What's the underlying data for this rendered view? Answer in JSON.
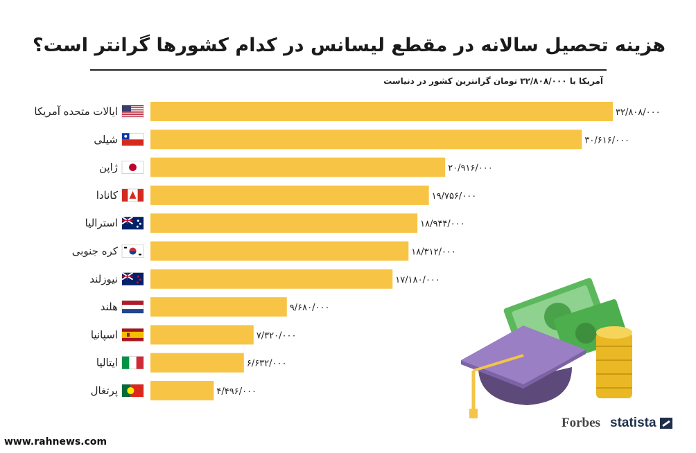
{
  "header": {
    "title": "هزینه تحصیل سالانه در مقطع لیسانس در کدام کشورها گرانتر است؟",
    "subtitle": "آمریکا با ۳۲/۸۰۸/۰۰۰ تومان گرانترین کشور در دنیاست"
  },
  "chart_data": {
    "type": "bar",
    "orientation": "horizontal",
    "categories": [
      "ایالات متحده آمریکا",
      "شیلی",
      "ژاپن",
      "کانادا",
      "استرالیا",
      "کره جنوبی",
      "نیوزلند",
      "هلند",
      "اسپانیا",
      "ایتالیا",
      "پرتغال"
    ],
    "values": [
      32808000,
      30616000,
      20916000,
      19756000,
      18944000,
      18312000,
      17180000,
      9680000,
      7320000,
      6632000,
      4496000
    ],
    "value_labels": [
      "۳۲/۸۰۸/۰۰۰",
      "۳۰/۶۱۶/۰۰۰",
      "۲۰/۹۱۶/۰۰۰",
      "۱۹/۷۵۶/۰۰۰",
      "۱۸/۹۴۴/۰۰۰",
      "۱۸/۳۱۲/۰۰۰",
      "۱۷/۱۸۰/۰۰۰",
      "۹/۶۸۰/۰۰۰",
      "۷/۳۲۰/۰۰۰",
      "۶/۶۳۲/۰۰۰",
      "۴/۴۹۶/۰۰۰"
    ],
    "flags": [
      "us-flag-icon",
      "chile-flag-icon",
      "japan-flag-icon",
      "canada-flag-icon",
      "australia-flag-icon",
      "south-korea-flag-icon",
      "new-zealand-flag-icon",
      "netherlands-flag-icon",
      "spain-flag-icon",
      "italy-flag-icon",
      "portugal-flag-icon"
    ],
    "bar_color": "#f8c445",
    "xlim": [
      0,
      32808000
    ],
    "grid": false,
    "legend": "none"
  },
  "branding": {
    "forbes": "Forbes",
    "statista": "statista",
    "website": "www.rahnews.com"
  }
}
